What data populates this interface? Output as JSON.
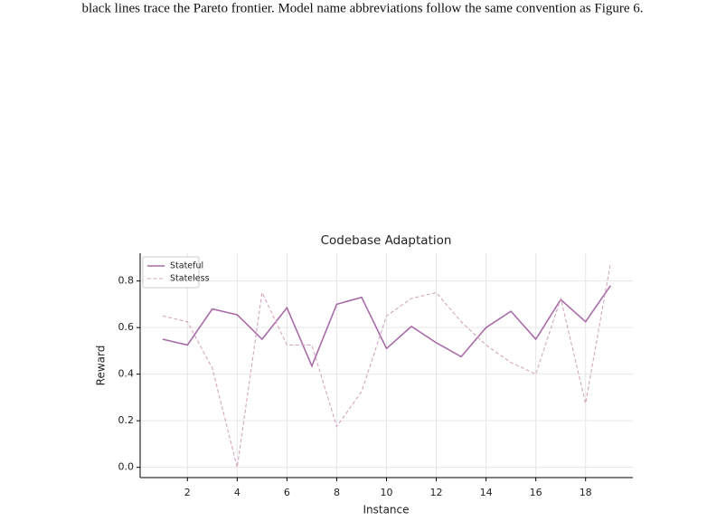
{
  "caption_text": "black lines trace the Pareto frontier. Model name abbreviations follow the same convention as Figure 6.",
  "chart_data": {
    "type": "line",
    "title": "Codebase Adaptation",
    "x_label": "Instance",
    "y_label": "Reward",
    "x": [
      1,
      2,
      3,
      4,
      5,
      6,
      7,
      8,
      9,
      10,
      11,
      12,
      13,
      14,
      15,
      16,
      17,
      18,
      19
    ],
    "series": [
      {
        "name": "Stateful",
        "color": "#a86ca8",
        "dash": "solid",
        "values": [
          0.55,
          0.525,
          0.68,
          0.655,
          0.55,
          0.685,
          0.435,
          0.7,
          0.73,
          0.51,
          0.605,
          0.535,
          0.475,
          0.6,
          0.67,
          0.55,
          0.72,
          0.625,
          0.78
        ]
      },
      {
        "name": "Stateless",
        "color": "#d4a5c0",
        "dash": "dashed",
        "values": [
          0.65,
          0.625,
          0.425,
          0.0,
          0.75,
          0.525,
          0.525,
          0.175,
          0.325,
          0.65,
          0.725,
          0.75,
          0.625,
          0.525,
          0.45,
          0.4,
          0.725,
          0.275,
          0.875
        ]
      }
    ],
    "xlim": [
      0.1,
      19.9
    ],
    "ylim": [
      -0.044,
      0.919
    ],
    "xticks": [
      2,
      4,
      6,
      8,
      10,
      12,
      14,
      16,
      18
    ],
    "yticks": [
      {
        "value": 0,
        "label": "0.0"
      },
      0.2,
      0.4,
      0.6,
      0.8
    ],
    "grid": true,
    "legend": "upper-left"
  }
}
